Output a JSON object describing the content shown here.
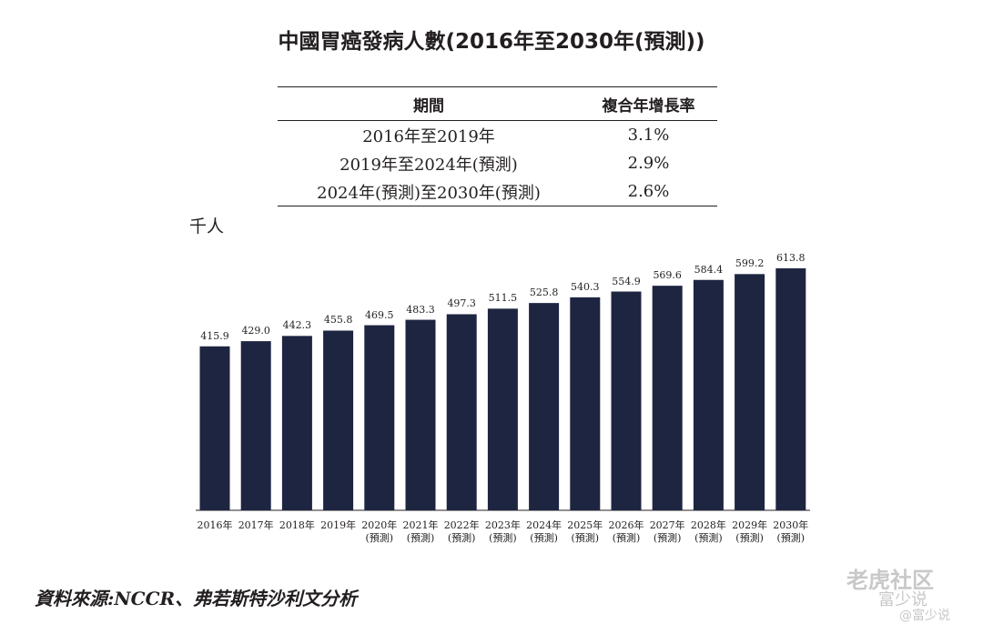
{
  "chart_data": {
    "type": "bar",
    "title": "中國胃癌發病人數(2016年至2030年(預測))",
    "unit_label": "千人",
    "categories": [
      "2016年",
      "2017年",
      "2018年",
      "2019年",
      "2020年\n(預測)",
      "2021年\n(預測)",
      "2022年\n(預測)",
      "2023年\n(預測)",
      "2024年\n(預測)",
      "2025年\n(預測)",
      "2026年\n(預測)",
      "2027年\n(預測)",
      "2028年\n(預測)",
      "2029年\n(預測)",
      "2030年\n(預測)"
    ],
    "values": [
      415.9,
      429.0,
      442.3,
      455.8,
      469.5,
      483.3,
      497.3,
      511.5,
      525.8,
      540.3,
      554.9,
      569.6,
      584.4,
      599.2,
      613.8
    ],
    "value_labels": [
      "415.9",
      "429.0",
      "442.3",
      "455.8",
      "469.5",
      "483.3",
      "497.3",
      "511.5",
      "525.8",
      "540.3",
      "554.9",
      "569.6",
      "584.4",
      "599.2",
      "613.8"
    ],
    "color": "#1d2541",
    "table": {
      "header": [
        "期間",
        "複合年增長率"
      ],
      "rows": [
        [
          "2016年至2019年",
          "3.1%"
        ],
        [
          "2019年至2024年(預測)",
          "2.9%"
        ],
        [
          "2024年(預測)至2030年(預測)",
          "2.6%"
        ]
      ]
    },
    "source": "資料來源:NCCR、弗若斯特沙利文分析"
  },
  "watermark": [
    "老虎社区",
    "富少说",
    "@富少说"
  ]
}
